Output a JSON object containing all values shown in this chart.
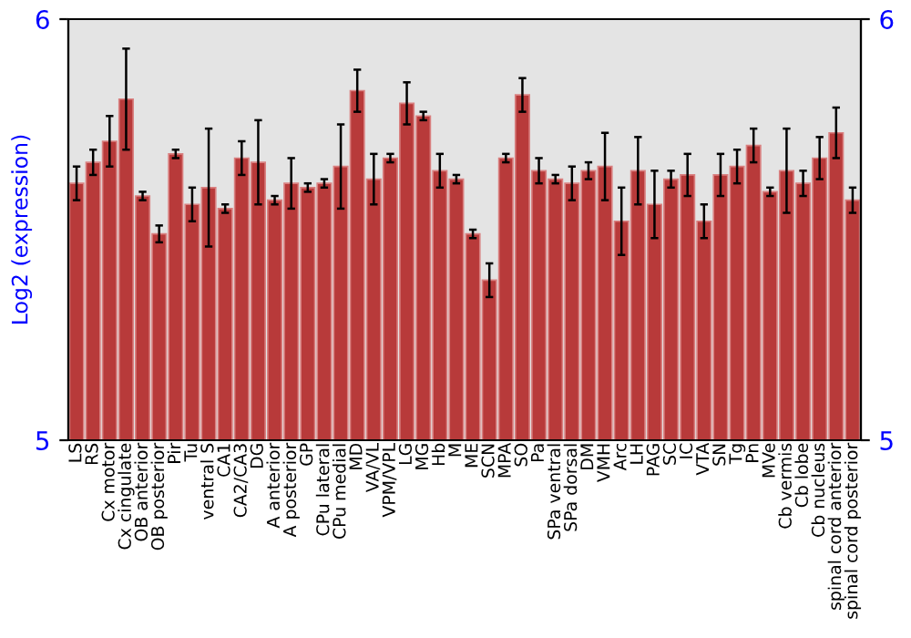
{
  "chart_data": {
    "type": "bar",
    "ylabel": "Log2 (expression)",
    "categories": [
      "LS",
      "RS",
      "Cx motor",
      "Cx cingulate",
      "OB anterior",
      "OB posterior",
      "Pir",
      "Tu",
      "ventral S",
      "CA1",
      "CA2/CA3",
      "DG",
      "A anterior",
      "A posterior",
      "GP",
      "CPu lateral",
      "CPu medial",
      "MD",
      "VA/VL",
      "VPM/VPL",
      "LG",
      "MG",
      "Hb",
      "M",
      "ME",
      "SCN",
      "MPA",
      "SO",
      "Pa",
      "SPa ventral",
      "SPa dorsal",
      "DM",
      "VMH",
      "Arc",
      "LH",
      "PAG",
      "SC",
      "IC",
      "VTA",
      "SN",
      "Tg",
      "Pn",
      "MVe",
      "Cb vermis",
      "Cb lobe",
      "Cb nucleus",
      "spinal cord anterior",
      "spinal cord posterior"
    ],
    "series": [
      {
        "color": "#b83a3a",
        "values": [
          5.61,
          5.66,
          5.71,
          5.81,
          5.58,
          5.49,
          5.68,
          5.56,
          5.6,
          5.55,
          5.67,
          5.66,
          5.57,
          5.61,
          5.6,
          5.61,
          5.65,
          5.83,
          5.62,
          5.67,
          5.8,
          5.77,
          5.64,
          5.62,
          5.49,
          5.38,
          5.67,
          5.82,
          5.64,
          5.62,
          5.61,
          5.64,
          5.65,
          5.52,
          5.64,
          5.56,
          5.62,
          5.63,
          5.52,
          5.63,
          5.65,
          5.7,
          5.59,
          5.64,
          5.61,
          5.67,
          5.73,
          5.57
        ],
        "errors": [
          0.04,
          0.03,
          0.06,
          0.12,
          0.01,
          0.02,
          0.01,
          0.04,
          0.14,
          0.01,
          0.04,
          0.1,
          0.01,
          0.06,
          0.01,
          0.01,
          0.1,
          0.05,
          0.06,
          0.01,
          0.05,
          0.01,
          0.04,
          0.01,
          0.01,
          0.04,
          0.01,
          0.04,
          0.03,
          0.01,
          0.04,
          0.02,
          0.08,
          0.08,
          0.08,
          0.08,
          0.02,
          0.05,
          0.04,
          0.05,
          0.04,
          0.04,
          0.01,
          0.1,
          0.03,
          0.05,
          0.06,
          0.03
        ]
      }
    ],
    "ylim": [
      5,
      6
    ],
    "yticks": [
      5,
      6
    ],
    "y2lim": [
      5,
      6
    ],
    "y2ticks": [
      5,
      6
    ],
    "grid": false,
    "legend": false
  }
}
